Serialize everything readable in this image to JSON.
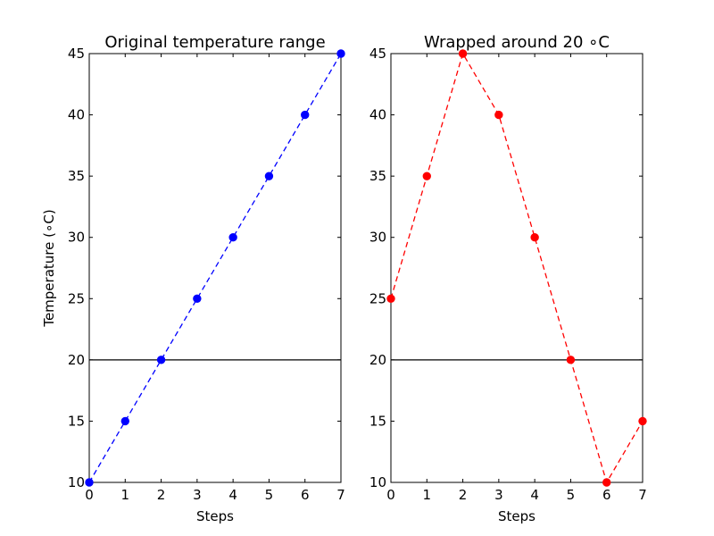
{
  "chart_data": [
    {
      "type": "line",
      "title": "Original temperature range",
      "xlabel": "Steps",
      "ylabel": "Temperature (∘C)",
      "xlim": [
        0,
        7
      ],
      "ylim": [
        10,
        45
      ],
      "xticks": [
        "0",
        "1",
        "2",
        "3",
        "4",
        "5",
        "6",
        "7"
      ],
      "yticks": [
        "10",
        "15",
        "20",
        "25",
        "30",
        "35",
        "40",
        "45"
      ],
      "grid": false,
      "reference_line_y": 20,
      "series": [
        {
          "x": [
            0,
            1,
            2,
            3,
            4,
            5,
            6,
            7
          ],
          "values": [
            10,
            15,
            20,
            25,
            30,
            35,
            40,
            45
          ],
          "color": "#0000ff",
          "linestyle": "dashed",
          "marker": "circle"
        }
      ]
    },
    {
      "type": "line",
      "title": "Wrapped around 20 ∘C",
      "xlabel": "Steps",
      "ylabel": "",
      "xlim": [
        0,
        7
      ],
      "ylim": [
        10,
        45
      ],
      "xticks": [
        "0",
        "1",
        "2",
        "3",
        "4",
        "5",
        "6",
        "7"
      ],
      "yticks": [
        "10",
        "15",
        "20",
        "25",
        "30",
        "35",
        "40",
        "45"
      ],
      "grid": false,
      "reference_line_y": 20,
      "series": [
        {
          "x": [
            0,
            1,
            2,
            3,
            4,
            5,
            6,
            7
          ],
          "values": [
            25,
            35,
            45,
            40,
            30,
            20,
            10,
            15
          ],
          "color": "#ff0000",
          "linestyle": "dashed",
          "marker": "circle"
        }
      ]
    }
  ]
}
